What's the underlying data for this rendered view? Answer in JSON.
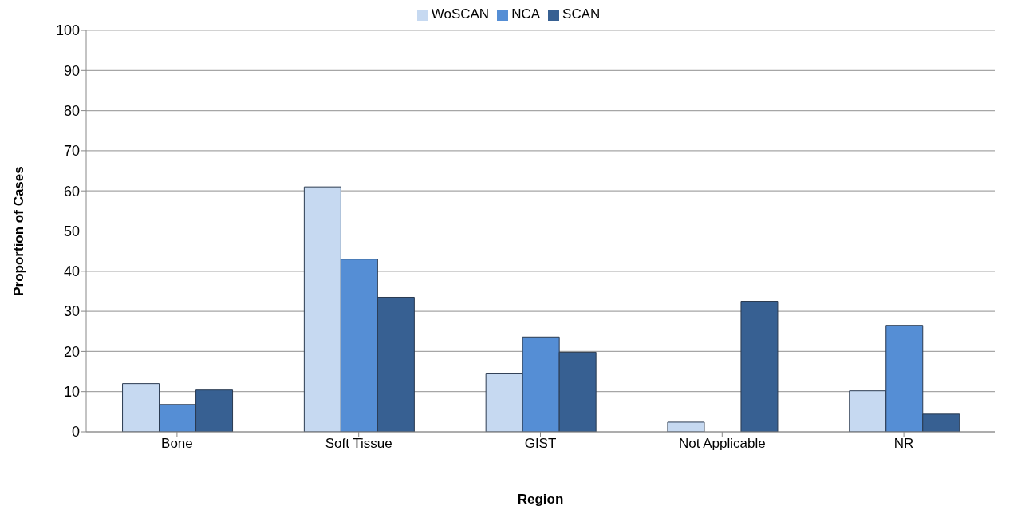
{
  "chart_data": {
    "type": "bar",
    "xlabel": "Region",
    "ylabel": "Proportion of Cases",
    "categories": [
      "Bone",
      "Soft Tissue",
      "GIST",
      "Not Applicable",
      "NR"
    ],
    "series": [
      {
        "name": "WoSCAN",
        "color": "#c6d9f1",
        "values": [
          12,
          61,
          14.6,
          2.4,
          10.2
        ]
      },
      {
        "name": "NCA",
        "color": "#558ed5",
        "values": [
          6.8,
          43,
          23.6,
          0,
          26.5
        ]
      },
      {
        "name": "SCAN",
        "color": "#376092",
        "values": [
          10.4,
          33.5,
          19.8,
          32.5,
          4.4
        ]
      }
    ],
    "ylim": [
      0,
      100
    ],
    "yticks": [
      0,
      10,
      20,
      30,
      40,
      50,
      60,
      70,
      80,
      90,
      100
    ],
    "grid": "y",
    "legend": "top"
  }
}
